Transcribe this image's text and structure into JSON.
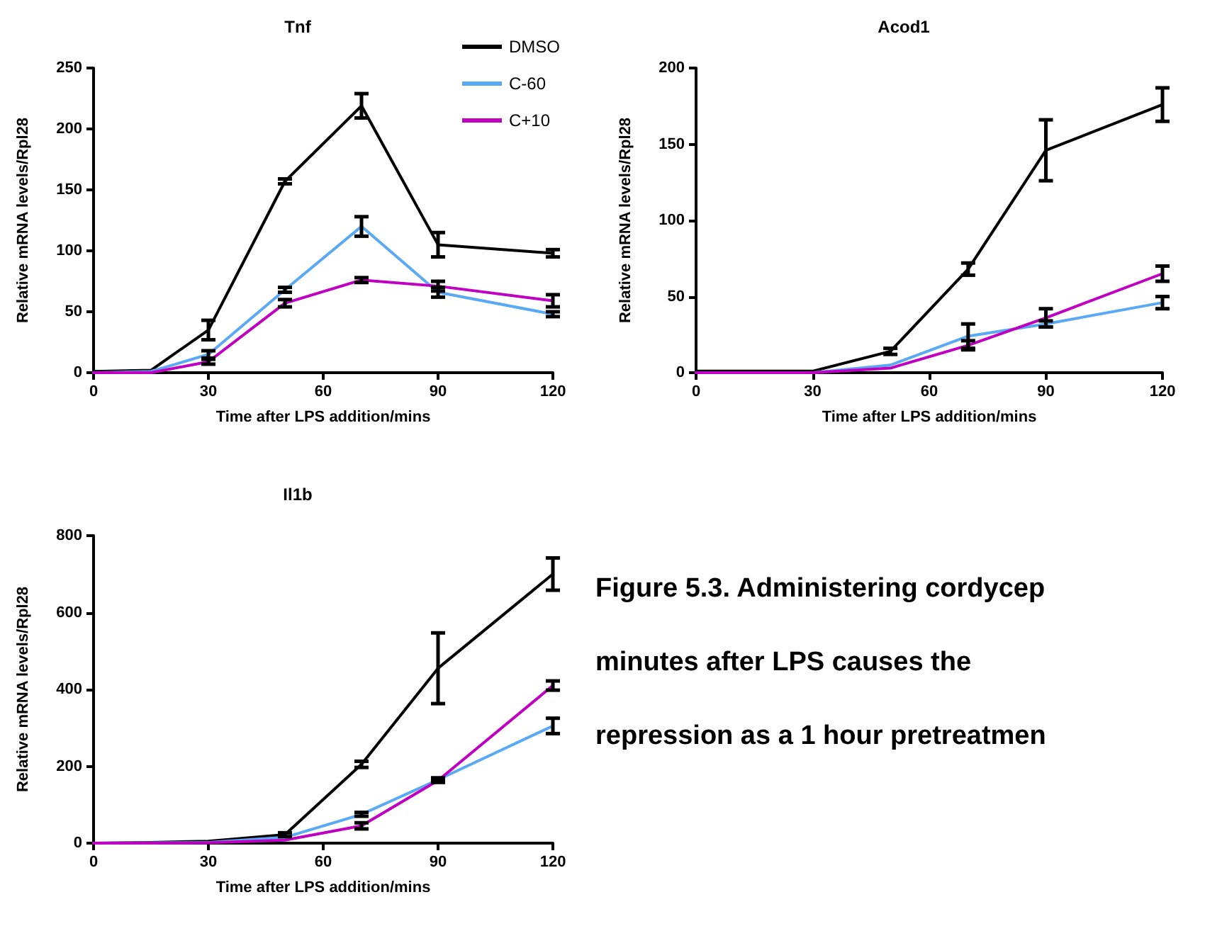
{
  "chart_data": [
    {
      "type": "line",
      "title": "Tnf",
      "xlabel": "Time after LPS addition/mins",
      "ylabel": "Relative mRNA levels/Rpl28",
      "x": [
        0,
        15,
        30,
        50,
        70,
        90,
        120
      ],
      "xlim": [
        0,
        120
      ],
      "xticks": [
        0,
        30,
        60,
        90,
        120
      ],
      "ylim": [
        0,
        250
      ],
      "yticks": [
        0,
        50,
        100,
        150,
        200,
        250
      ],
      "legend": "top right",
      "marker": "none",
      "grid": false,
      "series": [
        {
          "name": "DMSO",
          "color": "#000000",
          "values": [
            1,
            2,
            35,
            157,
            219,
            105,
            98
          ],
          "errors": [
            null,
            null,
            8,
            2,
            10,
            10,
            3
          ]
        },
        {
          "name": "C-60",
          "color": "#5aa9f5",
          "values": [
            0,
            1,
            15,
            68,
            120,
            66,
            48
          ],
          "errors": [
            null,
            null,
            3,
            2,
            8,
            4,
            2
          ]
        },
        {
          "name": "C+10",
          "color": "#bf00c0",
          "values": [
            0,
            0,
            9,
            57,
            76,
            71,
            59
          ],
          "errors": [
            null,
            null,
            2,
            3,
            2,
            4,
            5
          ]
        }
      ]
    },
    {
      "type": "line",
      "title": "Acod1",
      "xlabel": "Time after LPS addition/mins",
      "ylabel": "Relative mRNA levels/Rpl28",
      "x": [
        0,
        15,
        30,
        50,
        70,
        90,
        120
      ],
      "xlim": [
        0,
        120
      ],
      "xticks": [
        0,
        30,
        60,
        90,
        120
      ],
      "ylim": [
        0,
        200
      ],
      "yticks": [
        0,
        50,
        100,
        150,
        200
      ],
      "legend": false,
      "marker": "none",
      "grid": false,
      "series": [
        {
          "color": "#000000",
          "values": [
            1,
            1,
            1,
            14,
            68,
            146,
            176
          ],
          "errors": [
            null,
            null,
            null,
            2,
            4,
            20,
            11
          ]
        },
        {
          "color": "#5aa9f5",
          "values": [
            0,
            0,
            0,
            5,
            24,
            32,
            46
          ],
          "errors": [
            null,
            null,
            null,
            null,
            8,
            2,
            4
          ]
        },
        {
          "color": "#bf00c0",
          "values": [
            0,
            0,
            0,
            3,
            18,
            36,
            65
          ],
          "errors": [
            null,
            null,
            null,
            null,
            3,
            6,
            5
          ]
        }
      ]
    },
    {
      "type": "line",
      "title": "Il1b",
      "xlabel": "Time after LPS addition/mins",
      "ylabel": "Relative mRNA levels/Rpl28",
      "x": [
        0,
        15,
        30,
        50,
        70,
        90,
        120
      ],
      "xlim": [
        0,
        120
      ],
      "xticks": [
        0,
        30,
        60,
        90,
        120
      ],
      "ylim": [
        0,
        800
      ],
      "yticks": [
        0,
        200,
        400,
        600,
        800
      ],
      "legend": false,
      "marker": "none",
      "grid": false,
      "series": [
        {
          "color": "#000000",
          "values": [
            0,
            2,
            5,
            22,
            205,
            455,
            700
          ],
          "errors": [
            null,
            null,
            null,
            5,
            8,
            92,
            42
          ]
        },
        {
          "color": "#5aa9f5",
          "values": [
            0,
            1,
            2,
            15,
            75,
            165,
            305
          ],
          "errors": [
            null,
            null,
            null,
            null,
            5,
            5,
            20
          ]
        },
        {
          "color": "#bf00c0",
          "values": [
            0,
            0,
            1,
            8,
            45,
            163,
            410
          ],
          "errors": [
            null,
            null,
            null,
            null,
            8,
            5,
            12
          ]
        }
      ]
    },
    {
      "type": "other",
      "annotations": [
        "Figure 5.3. Administering cordycep",
        "minutes after LPS causes the",
        "repression as a 1 hour pretreatmen"
      ]
    }
  ]
}
